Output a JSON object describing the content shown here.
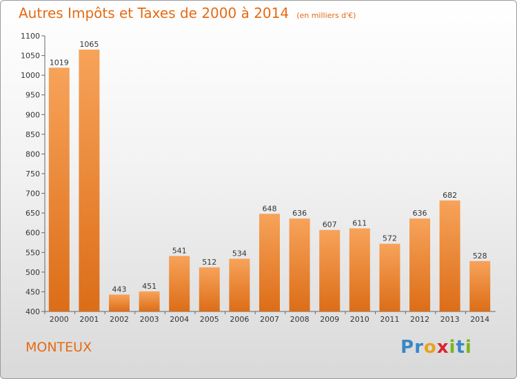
{
  "header": {
    "title": "Autres Impôts et Taxes de 2000 à 2014",
    "subtitle": "(en milliers d'€)"
  },
  "footer": {
    "commune": "MONTEUX",
    "logo_letters": [
      "P",
      "r",
      "o",
      "x",
      "i",
      "t",
      "i"
    ],
    "logo_colors": [
      "#3a87c8",
      "#3a87c8",
      "#e8a21b",
      "#d8262e",
      "#7ab51d",
      "#3a87c8",
      "#7ab51d"
    ]
  },
  "colors": {
    "bar_light": "#f7a35a",
    "bar_dark": "#dc6d17",
    "accent": "#e56a12"
  },
  "chart_data": {
    "type": "bar",
    "title": "Autres Impôts et Taxes de 2000 à 2014",
    "subtitle": "(en milliers d'€)",
    "categories": [
      "2000",
      "2001",
      "2002",
      "2003",
      "2004",
      "2005",
      "2006",
      "2007",
      "2008",
      "2009",
      "2010",
      "2011",
      "2012",
      "2013",
      "2014"
    ],
    "values": [
      1019,
      1065,
      443,
      451,
      541,
      512,
      534,
      648,
      636,
      607,
      611,
      572,
      636,
      682,
      528
    ],
    "ylim": [
      400,
      1100
    ],
    "yticks": [
      400,
      450,
      500,
      550,
      600,
      650,
      700,
      750,
      800,
      850,
      900,
      950,
      1000,
      1050,
      1100
    ],
    "grid": false,
    "legend": "none"
  }
}
